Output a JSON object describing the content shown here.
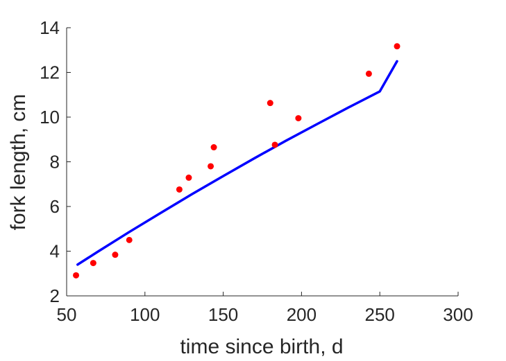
{
  "chart_data": {
    "type": "scatter",
    "xlabel": "time since birth, d",
    "ylabel": "fork length, cm",
    "xlim": [
      50,
      300
    ],
    "ylim": [
      2,
      14
    ],
    "xticks": [
      50,
      100,
      150,
      200,
      250,
      300
    ],
    "yticks": [
      2,
      4,
      6,
      8,
      10,
      12,
      14
    ],
    "grid": false,
    "colors": {
      "points": "#ff0000",
      "fit": "#0000ff",
      "axis": "#262626"
    },
    "series": [
      {
        "kind": "points",
        "x": [
          56,
          67,
          81,
          90,
          122,
          128,
          142,
          144,
          180,
          183,
          198,
          243,
          261
        ],
        "y": [
          2.92,
          3.47,
          3.84,
          4.5,
          6.76,
          7.29,
          7.8,
          8.65,
          10.63,
          8.76,
          9.95,
          11.94,
          13.17
        ]
      },
      {
        "kind": "fit-line",
        "x": [
          57,
          70,
          90,
          110,
          130,
          150,
          170,
          190,
          210,
          230,
          250,
          261
        ],
        "y": [
          3.4,
          3.98,
          4.86,
          5.71,
          6.55,
          7.36,
          8.16,
          8.94,
          9.69,
          10.43,
          11.15,
          12.5
        ]
      }
    ]
  }
}
